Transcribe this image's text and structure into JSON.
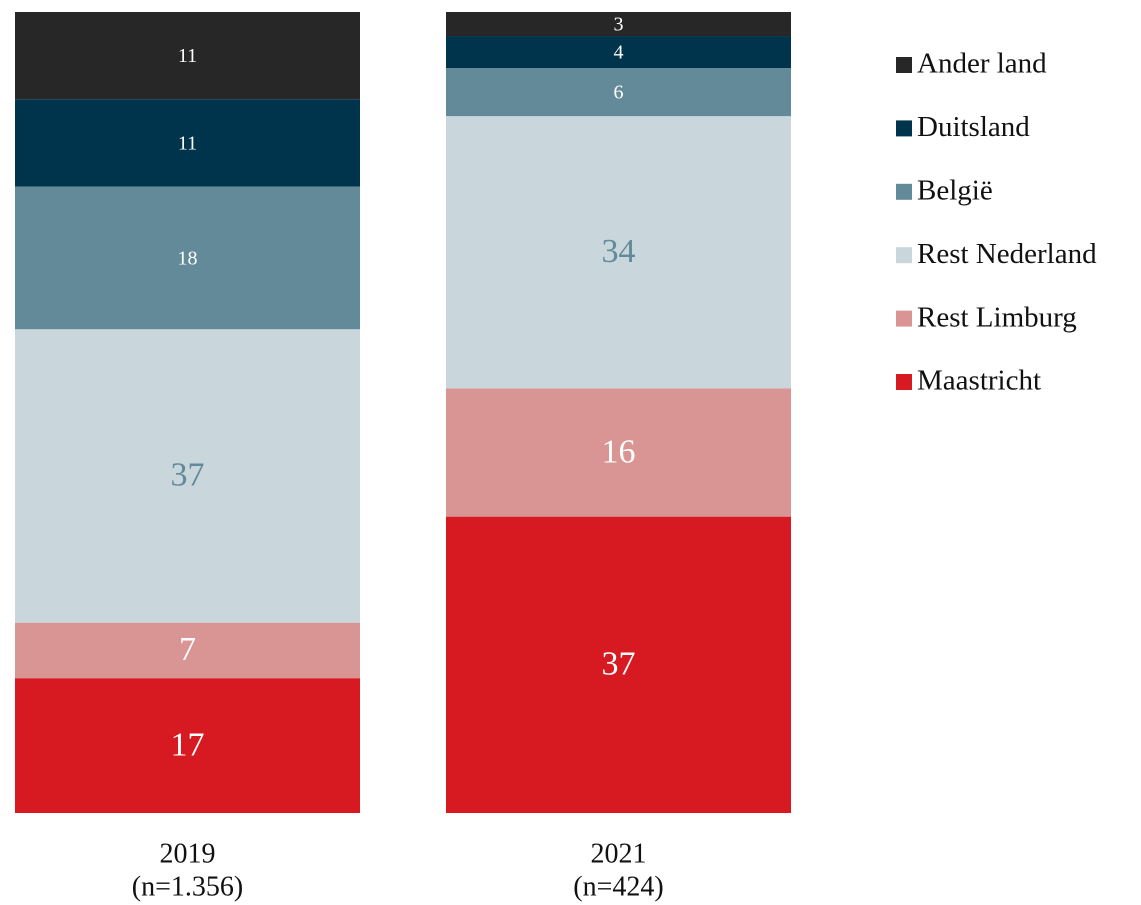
{
  "chart_data": {
    "type": "stacked_bar_100",
    "categories": [
      "2019",
      "2021"
    ],
    "category_notes": [
      "(n=1.356)",
      "(n=424)"
    ],
    "series": [
      {
        "name": "Maastricht",
        "color": "#d71a21",
        "label_color": "#ffffff",
        "values": [
          17,
          37
        ]
      },
      {
        "name": "Rest Limburg",
        "color": "#d99594",
        "label_color": "#ffffff",
        "values": [
          7,
          16
        ]
      },
      {
        "name": "Rest Nederland",
        "color": "#c9d6dc",
        "label_color": "#628a99",
        "values": [
          37,
          34
        ]
      },
      {
        "name": "België",
        "color": "#628a99",
        "label_color": "#ffffff",
        "values": [
          18,
          6
        ]
      },
      {
        "name": "Duitsland",
        "color": "#00344d",
        "label_color": "#ffffff",
        "values": [
          11,
          4
        ]
      },
      {
        "name": "Ander land",
        "color": "#272727",
        "label_color": "#ffffff",
        "values": [
          11,
          3
        ]
      }
    ],
    "legend": "right"
  }
}
